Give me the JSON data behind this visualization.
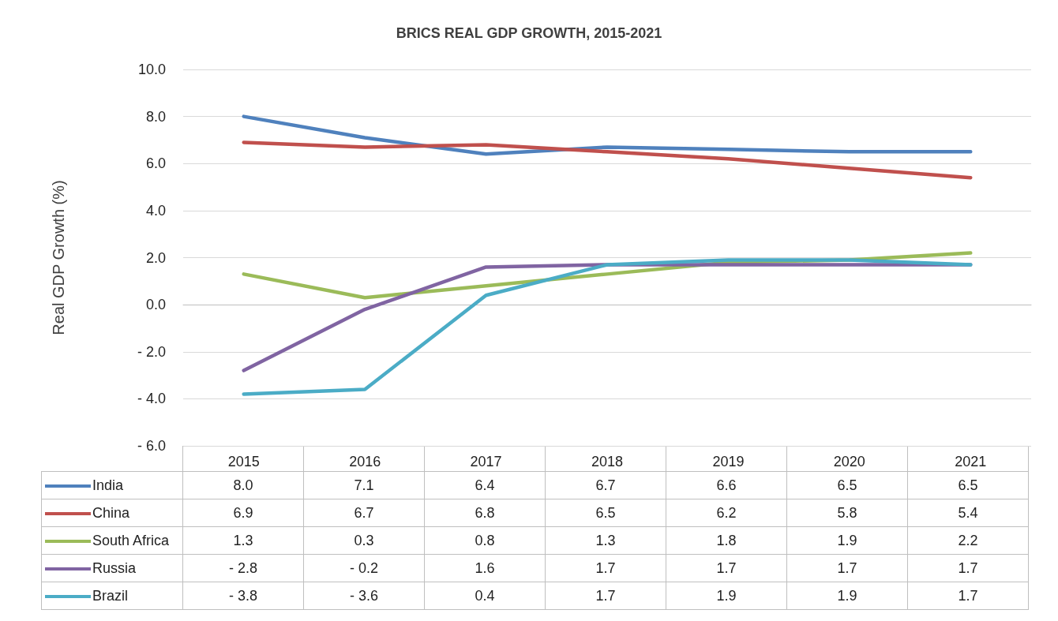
{
  "chart_data": {
    "type": "line",
    "title": "BRICS REAL GDP GROWTH, 2015-2021",
    "ylabel": "Real GDP Growth (%)",
    "categories": [
      "2015",
      "2016",
      "2017",
      "2018",
      "2019",
      "2020",
      "2021"
    ],
    "series": [
      {
        "name": "India",
        "color": "#4f81bd",
        "values": [
          8.0,
          7.1,
          6.4,
          6.7,
          6.6,
          6.5,
          6.5
        ],
        "value_labels": [
          "8.0",
          "7.1",
          "6.4",
          "6.7",
          "6.6",
          "6.5",
          "6.5"
        ]
      },
      {
        "name": "China",
        "color": "#c0504d",
        "values": [
          6.9,
          6.7,
          6.8,
          6.5,
          6.2,
          5.8,
          5.4
        ],
        "value_labels": [
          "6.9",
          "6.7",
          "6.8",
          "6.5",
          "6.2",
          "5.8",
          "5.4"
        ]
      },
      {
        "name": "South Africa",
        "color": "#9bbb59",
        "values": [
          1.3,
          0.3,
          0.8,
          1.3,
          1.8,
          1.9,
          2.2
        ],
        "value_labels": [
          "1.3",
          "0.3",
          "0.8",
          "1.3",
          "1.8",
          "1.9",
          "2.2"
        ]
      },
      {
        "name": "Russia",
        "color": "#8064a2",
        "values": [
          -2.8,
          -0.2,
          1.6,
          1.7,
          1.7,
          1.7,
          1.7
        ],
        "value_labels": [
          "- 2.8",
          "- 0.2",
          "1.6",
          "1.7",
          "1.7",
          "1.7",
          "1.7"
        ]
      },
      {
        "name": "Brazil",
        "color": "#4bacc6",
        "values": [
          -3.8,
          -3.6,
          0.4,
          1.7,
          1.9,
          1.9,
          1.7
        ],
        "value_labels": [
          "- 3.8",
          "- 3.6",
          "0.4",
          "1.7",
          "1.9",
          "1.9",
          "1.7"
        ]
      }
    ],
    "ylim": [
      -6,
      10
    ],
    "yticks": [
      {
        "value": -6,
        "label": "- 6.0"
      },
      {
        "value": -4,
        "label": "- 4.0"
      },
      {
        "value": -2,
        "label": "- 2.0"
      },
      {
        "value": 0,
        "label": "0.0"
      },
      {
        "value": 2,
        "label": "2.0"
      },
      {
        "value": 4,
        "label": "4.0"
      },
      {
        "value": 6,
        "label": "6.0"
      },
      {
        "value": 8,
        "label": "8.0"
      },
      {
        "value": 10,
        "label": "10.0"
      }
    ],
    "grid": "y",
    "legend": "bottom",
    "marker": "none",
    "line_style": "solid"
  }
}
